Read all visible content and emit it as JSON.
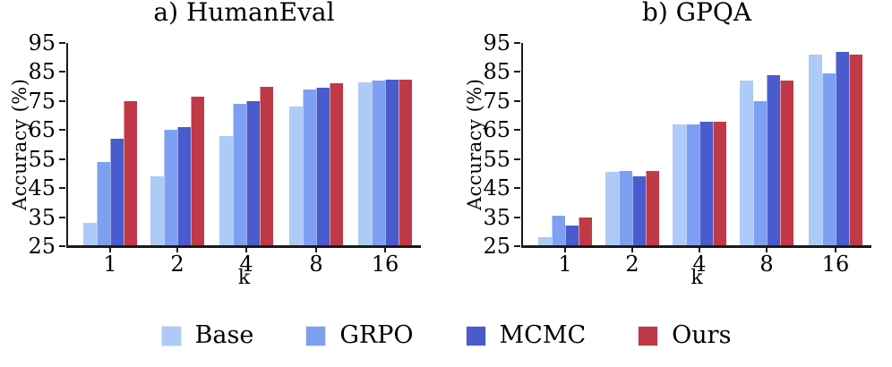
{
  "chart_data": [
    {
      "type": "bar",
      "title": "a) HumanEval",
      "xlabel": "k",
      "ylabel": "Accuracy (%)",
      "categories": [
        "1",
        "2",
        "4",
        "8",
        "16"
      ],
      "series": [
        {
          "name": "Base",
          "color": "#aecaf6",
          "values": [
            33,
            49,
            63,
            73,
            81.5
          ]
        },
        {
          "name": "GRPO",
          "color": "#7da0f3",
          "values": [
            54,
            65,
            74,
            79,
            82
          ]
        },
        {
          "name": "MCMC",
          "color": "#4a5ccd",
          "values": [
            62,
            66,
            75,
            79.5,
            82.5
          ]
        },
        {
          "name": "Ours",
          "color": "#bf3a46",
          "values": [
            75,
            76.5,
            80,
            81,
            82.5
          ]
        }
      ],
      "ylim": [
        25,
        95
      ],
      "yticks": [
        25,
        35,
        45,
        55,
        65,
        75,
        85,
        95
      ],
      "grid": false,
      "legend_position": "bottom-center-shared"
    },
    {
      "type": "bar",
      "title": "b) GPQA",
      "xlabel": "k",
      "ylabel": "Accuracy (%)",
      "categories": [
        "1",
        "2",
        "4",
        "8",
        "16"
      ],
      "series": [
        {
          "name": "Base",
          "color": "#aecaf6",
          "values": [
            28,
            50.5,
            67,
            82,
            91
          ]
        },
        {
          "name": "GRPO",
          "color": "#7da0f3",
          "values": [
            35.5,
            51,
            67,
            75,
            84.5
          ]
        },
        {
          "name": "MCMC",
          "color": "#4a5ccd",
          "values": [
            32,
            49,
            68,
            84,
            92
          ]
        },
        {
          "name": "Ours",
          "color": "#bf3a46",
          "values": [
            35,
            51,
            68,
            82,
            91
          ]
        }
      ],
      "ylim": [
        25,
        95
      ],
      "yticks": [
        25,
        35,
        45,
        55,
        65,
        75,
        85,
        95
      ],
      "grid": false,
      "legend_position": "bottom-center-shared"
    }
  ]
}
